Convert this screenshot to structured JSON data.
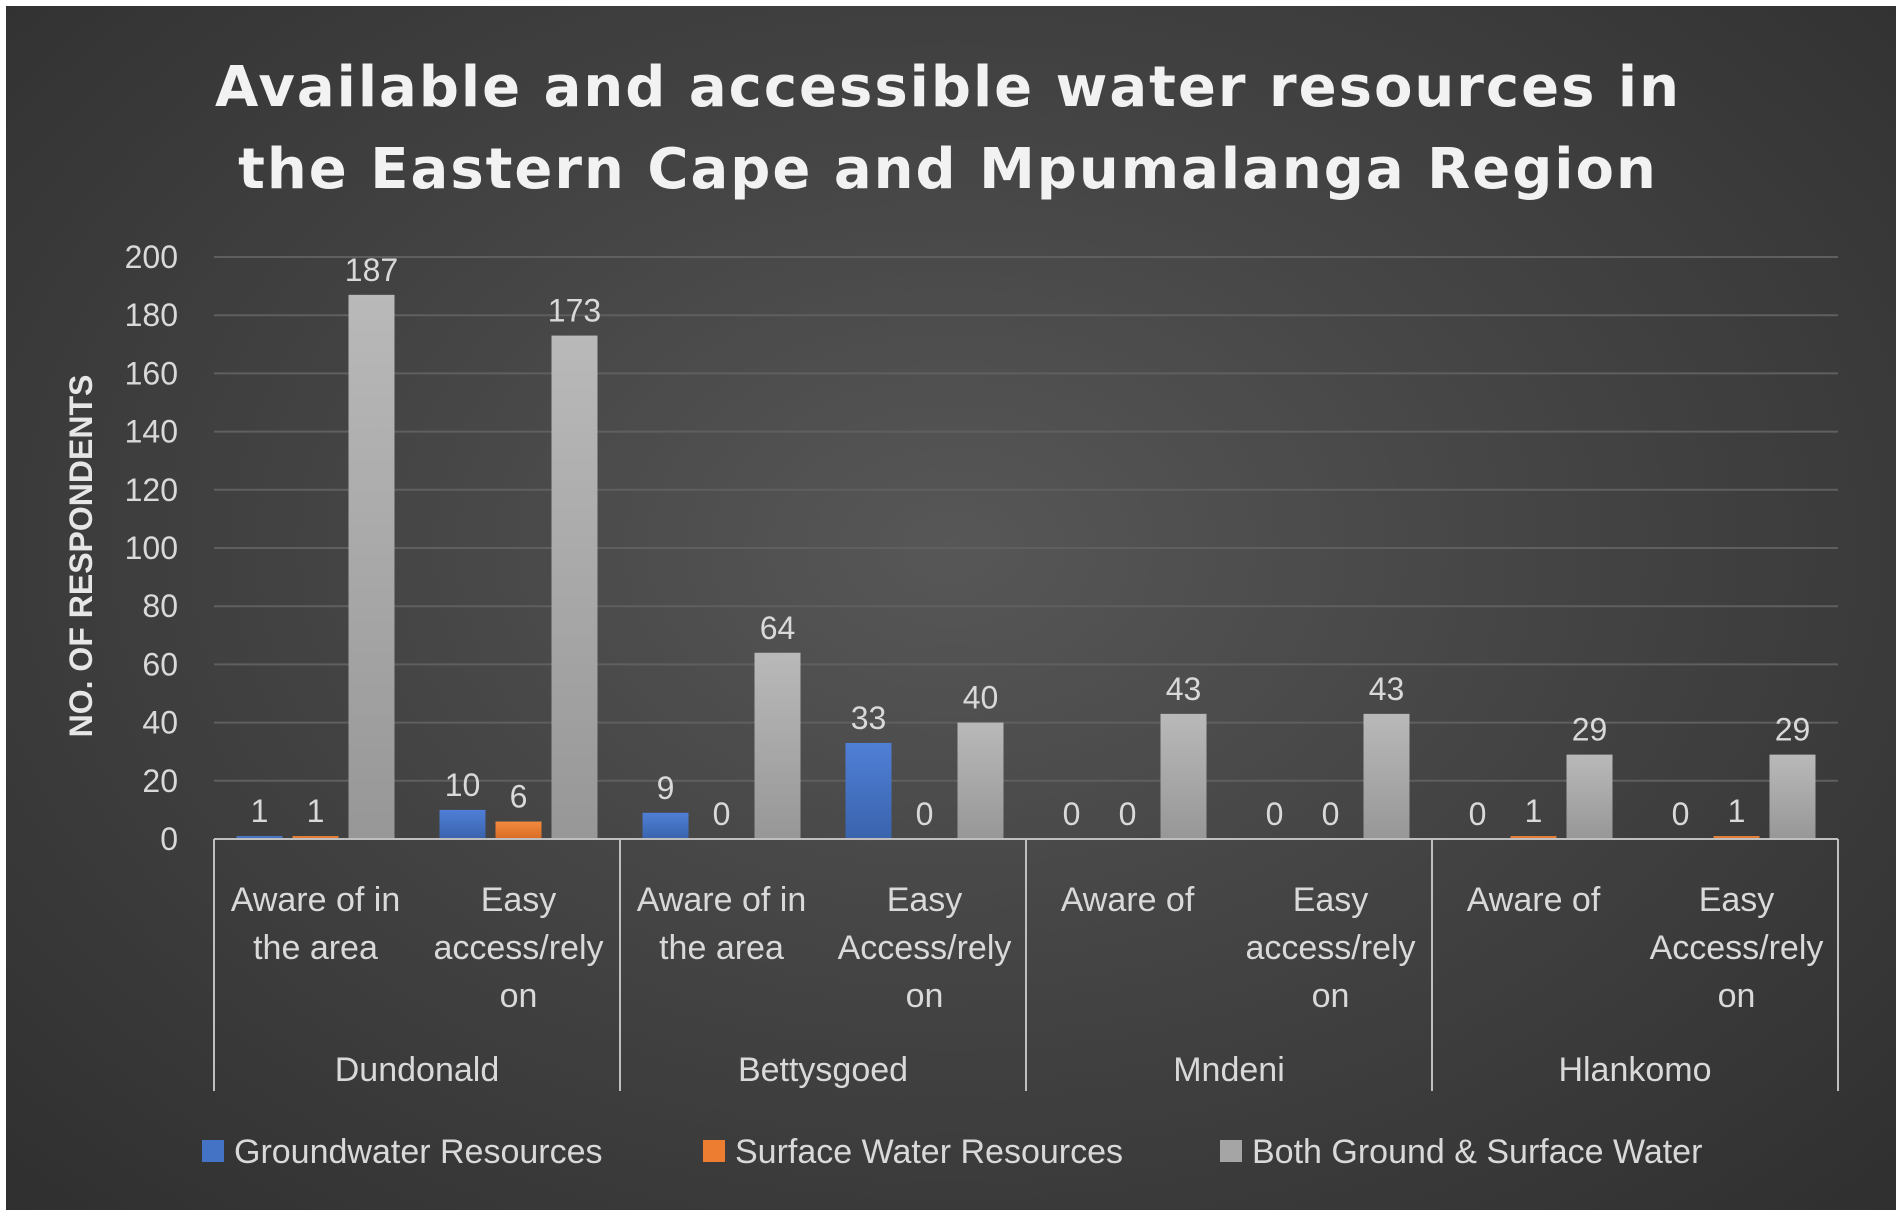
{
  "chart_data": {
    "type": "bar",
    "title": "Available and accessible water resources in the Eastern Cape and Mpumalanga Region",
    "title_lines": [
      "Available and accessible water resources in",
      "the Eastern Cape and Mpumalanga Region"
    ],
    "ylabel": "NO. OF RESPONDENTS",
    "xlabel": "",
    "ylim": [
      0,
      200
    ],
    "yticks": [
      0,
      20,
      40,
      60,
      80,
      100,
      120,
      140,
      160,
      180,
      200
    ],
    "grid": true,
    "legend_position": "bottom",
    "groups": [
      {
        "name": "Dundonald",
        "categories": [
          [
            "Aware of in",
            "the area"
          ],
          [
            "Easy",
            "access/rely",
            "on"
          ]
        ]
      },
      {
        "name": "Bettysgoed",
        "categories": [
          [
            "Aware of in",
            "the area"
          ],
          [
            "Easy",
            "Access/rely",
            "on"
          ]
        ]
      },
      {
        "name": "Mndeni",
        "categories": [
          [
            "Aware of"
          ],
          [
            "Easy",
            "access/rely",
            "on"
          ]
        ]
      },
      {
        "name": "Hlankomo",
        "categories": [
          [
            "Aware of"
          ],
          [
            "Easy",
            "Access/rely",
            "on"
          ]
        ]
      }
    ],
    "series": [
      {
        "name": "Groundwater Resources",
        "color": "#4472c4",
        "values": [
          1,
          10,
          9,
          33,
          0,
          0,
          0,
          0
        ]
      },
      {
        "name": "Surface Water Resources",
        "color": "#ed7d31",
        "values": [
          1,
          6,
          0,
          0,
          0,
          0,
          1,
          1
        ]
      },
      {
        "name": "Both Ground & Surface Water",
        "color": "#a5a5a5",
        "values": [
          187,
          173,
          64,
          40,
          43,
          43,
          29,
          29
        ]
      }
    ]
  }
}
